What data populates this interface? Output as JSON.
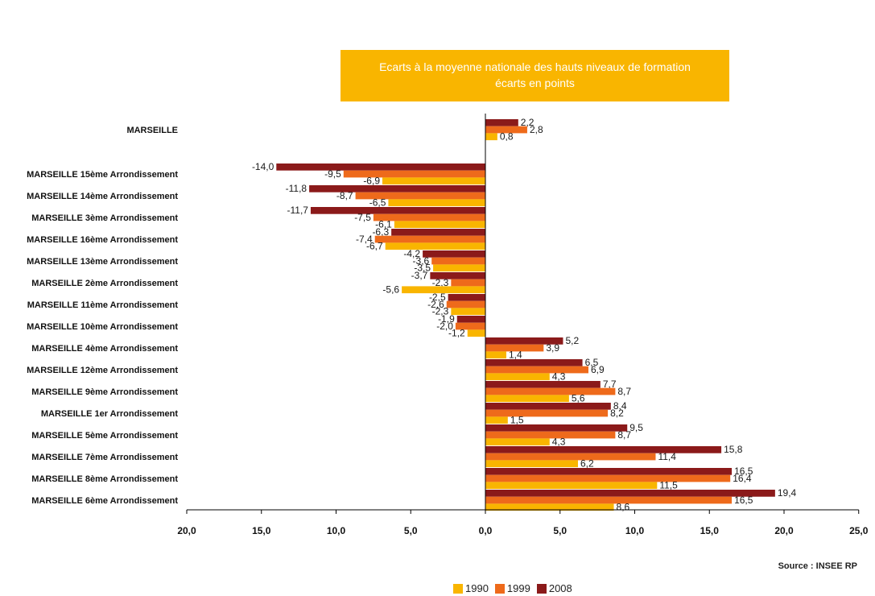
{
  "chart_data": {
    "type": "bar",
    "orientation": "horizontal",
    "title": "Ecarts à la moyenne nationale des hauts niveaux de formation",
    "subtitle": "écarts en points",
    "categories": [
      "MARSEILLE",
      "MARSEILLE 15ème Arrondissement",
      "MARSEILLE 14ème Arrondissement",
      "MARSEILLE 3ème Arrondissement",
      "MARSEILLE 16ème Arrondissement",
      "MARSEILLE 13ème Arrondissement",
      "MARSEILLE 2ème Arrondissement",
      "MARSEILLE 11ème Arrondissement",
      "MARSEILLE 10ème Arrondissement",
      "MARSEILLE 4ème Arrondissement",
      "MARSEILLE 12ème Arrondissement",
      "MARSEILLE 9ème Arrondissement",
      "MARSEILLE 1er Arrondissement",
      "MARSEILLE 5ème Arrondissement",
      "MARSEILLE 7ème Arrondissement",
      "MARSEILLE 8ème Arrondissement",
      "MARSEILLE 6ème Arrondissement"
    ],
    "series": [
      {
        "name": "2008",
        "color": "#8b1a1a",
        "values": [
          2.2,
          -14.0,
          -11.8,
          -11.7,
          -6.3,
          -4.2,
          -3.7,
          -2.5,
          -1.9,
          5.2,
          6.5,
          7.7,
          8.4,
          9.5,
          15.8,
          16.5,
          19.4
        ],
        "labels": [
          "2,2",
          "-14,0",
          "-11,8",
          "-11,7",
          "-6,3",
          "-4,2",
          "-3,7",
          "-2,5",
          "-1,9",
          "5,2",
          "6,5",
          "7,7",
          "8,4",
          "9,5",
          "15,8",
          "16,5",
          "19,4"
        ]
      },
      {
        "name": "1999",
        "color": "#ee6a1b",
        "values": [
          2.8,
          -9.5,
          -8.7,
          -7.5,
          -7.4,
          -3.6,
          -2.3,
          -2.6,
          -2.0,
          3.9,
          6.9,
          8.7,
          8.2,
          8.7,
          11.4,
          16.4,
          16.5
        ],
        "labels": [
          "2,8",
          "-9,5",
          "-8,7",
          "-7,5",
          "-7,4",
          "-3,6",
          "-2,3",
          "-2,6",
          "-2,0",
          "3,9",
          "6,9",
          "8,7",
          "8,2",
          "8,7",
          "11,4",
          "16,4",
          "16,5"
        ]
      },
      {
        "name": "1990",
        "color": "#f9b500",
        "values": [
          0.8,
          -6.9,
          -6.5,
          -6.1,
          -6.7,
          -3.5,
          -5.6,
          -2.3,
          -1.2,
          1.4,
          4.3,
          5.6,
          1.5,
          4.3,
          6.2,
          11.5,
          8.6
        ],
        "labels": [
          "0,8",
          "-6,9",
          "-6,5",
          "-6,1",
          "-6,7",
          "-3,5",
          "-5,6",
          "-2,3",
          "-1,2",
          "1,4",
          "4,3",
          "5,6",
          "1,5",
          "4,3",
          "6,2",
          "11,5",
          "8,6"
        ]
      }
    ],
    "xlim": [
      -20,
      25
    ],
    "xticks": [
      -20,
      -15,
      -10,
      -5,
      0,
      5,
      10,
      15,
      20,
      25
    ],
    "xtick_labels": [
      "20,0",
      "15,0",
      "10,0",
      "5,0",
      "0,0",
      "5,0",
      "10,0",
      "15,0",
      "20,0",
      "25,0"
    ],
    "grid": false,
    "legend": "bottom",
    "legend_entries": [
      "1990",
      "1999",
      "2008"
    ],
    "source": "Source : INSEE RP"
  }
}
